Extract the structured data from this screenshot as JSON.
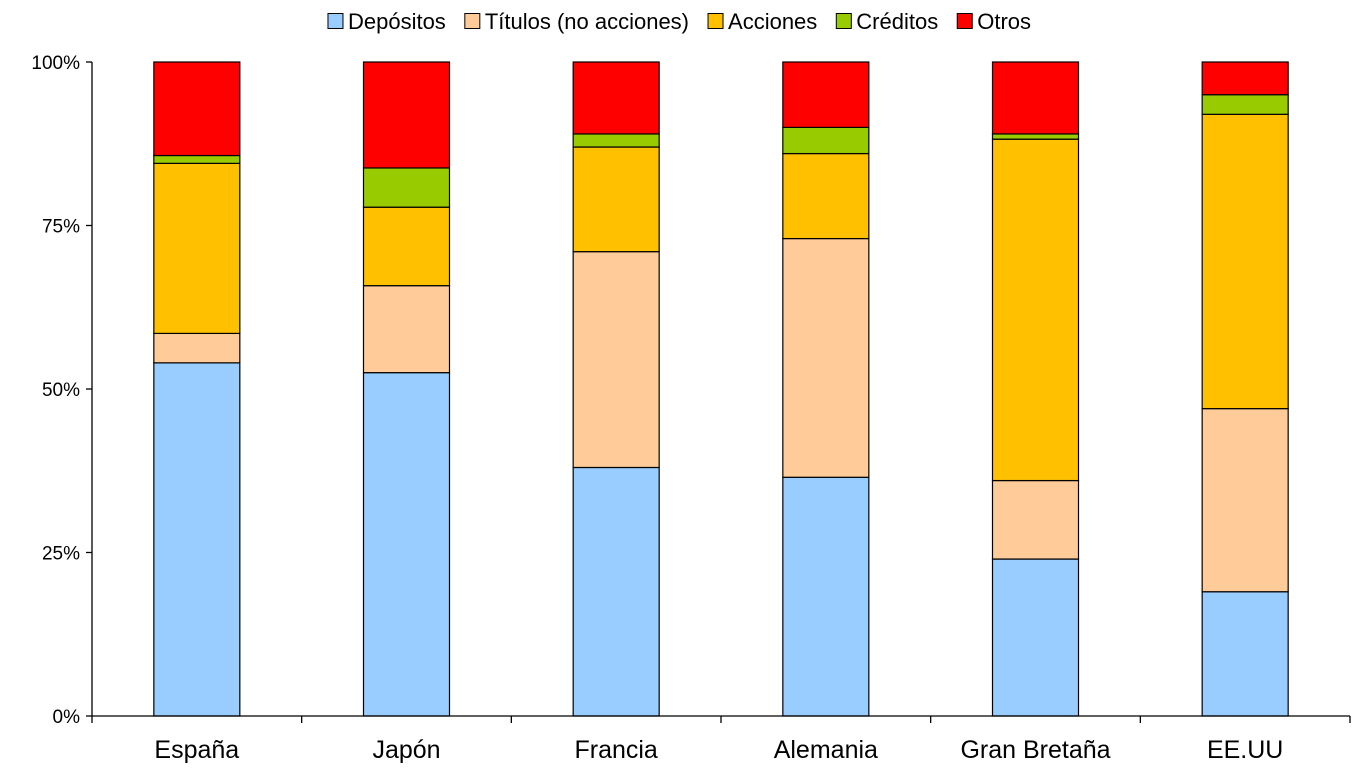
{
  "chart_data": {
    "type": "bar",
    "stacked": true,
    "normalized": true,
    "title": "",
    "xlabel": "",
    "ylabel": "",
    "ylim": [
      0,
      100
    ],
    "yticks": [
      "0%",
      "25%",
      "50%",
      "75%",
      "100%"
    ],
    "ytick_values": [
      0,
      25,
      50,
      75,
      100
    ],
    "grid": false,
    "legend_position": "top",
    "categories": [
      "España",
      "Japón",
      "Francia",
      "Alemania",
      "Gran Bretaña",
      "EE.UU"
    ],
    "series": [
      {
        "name": "Depósitos",
        "color": "#99ccff",
        "values": [
          54,
          52.5,
          38,
          36.5,
          24,
          19
        ]
      },
      {
        "name": "Títulos (no acciones)",
        "color": "#ffcc99",
        "values": [
          4.5,
          13.3,
          33,
          36.5,
          12,
          28
        ]
      },
      {
        "name": "Acciones",
        "color": "#ffc000",
        "values": [
          26,
          12,
          16,
          13,
          52.2,
          45
        ]
      },
      {
        "name": "Créditos",
        "color": "#99cc00",
        "values": [
          1.2,
          6,
          2,
          4,
          0.8,
          3
        ]
      },
      {
        "name": "Otros",
        "color": "#ff0000",
        "values": [
          14.3,
          16.2,
          11,
          10,
          11,
          5
        ]
      }
    ]
  }
}
